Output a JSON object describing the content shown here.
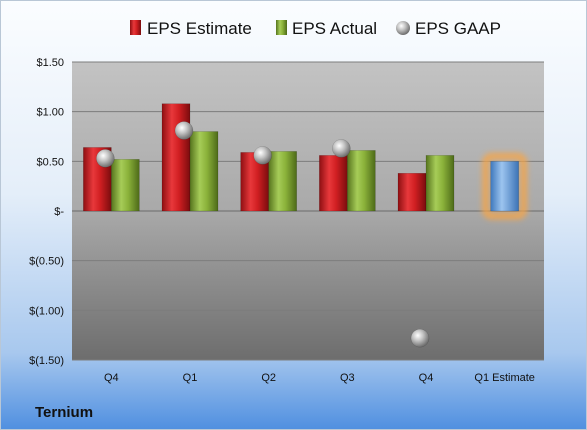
{
  "company_label": "Ternium",
  "chart_data": {
    "type": "bar",
    "categories": [
      "Q4",
      "Q1",
      "Q2",
      "Q3",
      "Q4",
      "Q1 Estimate"
    ],
    "series": [
      {
        "name": "EPS Estimate",
        "kind": "bar",
        "color": "#c8191c",
        "values": [
          0.64,
          1.08,
          0.59,
          0.56,
          0.38,
          null
        ]
      },
      {
        "name": "EPS Actual",
        "kind": "bar",
        "color": "#82a832",
        "values": [
          0.52,
          0.8,
          0.6,
          0.61,
          0.56,
          0.5
        ]
      },
      {
        "name": "EPS GAAP",
        "kind": "marker",
        "color": "#a9a9a9",
        "values": [
          0.53,
          0.81,
          0.56,
          0.63,
          -1.28,
          null
        ]
      }
    ],
    "forecast_bar": {
      "category": "Q1 Estimate",
      "color": "#6fa3dc",
      "glow": "#f5a54a"
    },
    "y_ticks": [
      {
        "value": 1.5,
        "label": "$1.50"
      },
      {
        "value": 1.0,
        "label": "$1.00"
      },
      {
        "value": 0.5,
        "label": "$0.50"
      },
      {
        "value": 0.0,
        "label": "$-"
      },
      {
        "value": -0.5,
        "label": "$(0.50)"
      },
      {
        "value": -1.0,
        "label": "$(1.00)"
      },
      {
        "value": -1.5,
        "label": "$(1.50)"
      }
    ],
    "ylim": [
      -1.5,
      1.5
    ],
    "grid": true,
    "legend_position": "top",
    "title": "",
    "xlabel": "",
    "ylabel": ""
  }
}
